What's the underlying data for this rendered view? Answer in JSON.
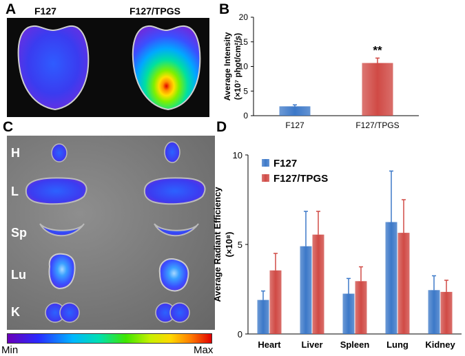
{
  "panels": {
    "a": "A",
    "b": "B",
    "c": "C",
    "d": "D"
  },
  "panel_a": {
    "left_label": "F127",
    "right_label": "F127/TPGS"
  },
  "panel_c": {
    "organs": [
      "H",
      "L",
      "Sp",
      "Lu",
      "K"
    ]
  },
  "colorbar": {
    "min_label": "Min",
    "max_label": "Max"
  },
  "colors": {
    "f127": "#3c78c8",
    "f127_tpgs": "#d04a45"
  },
  "chart_data": [
    {
      "type": "bar",
      "categories": [
        "F127",
        "F127/TPGS"
      ],
      "values": [
        1.9,
        10.7
      ],
      "errors": [
        0.3,
        1.0
      ],
      "ylabel_line1": "Average Intensity",
      "ylabel_line2": "(×10⁷ phot/cm²/s)",
      "ylim": [
        0,
        20
      ],
      "yticks": [
        0,
        5,
        10,
        15,
        20
      ],
      "annotation": "**",
      "grid": false
    },
    {
      "type": "bar",
      "categories": [
        "Heart",
        "Liver",
        "Spleen",
        "Lung",
        "Kidney"
      ],
      "series": [
        {
          "name": "F127",
          "values": [
            1.9,
            4.9,
            2.25,
            6.25,
            2.45
          ],
          "errors": [
            0.5,
            1.95,
            0.85,
            2.85,
            0.8
          ]
        },
        {
          "name": "F127/TPGS",
          "values": [
            3.55,
            5.55,
            2.95,
            5.65,
            2.35
          ],
          "errors": [
            0.95,
            1.3,
            0.8,
            1.85,
            0.65
          ]
        }
      ],
      "ylabel_line1": "Average Radiant Efficiency",
      "ylabel_line2": "(×10⁸)",
      "ylim": [
        0,
        10
      ],
      "yticks": [
        0,
        5,
        10
      ],
      "legend": "top-left",
      "grid": false
    }
  ]
}
